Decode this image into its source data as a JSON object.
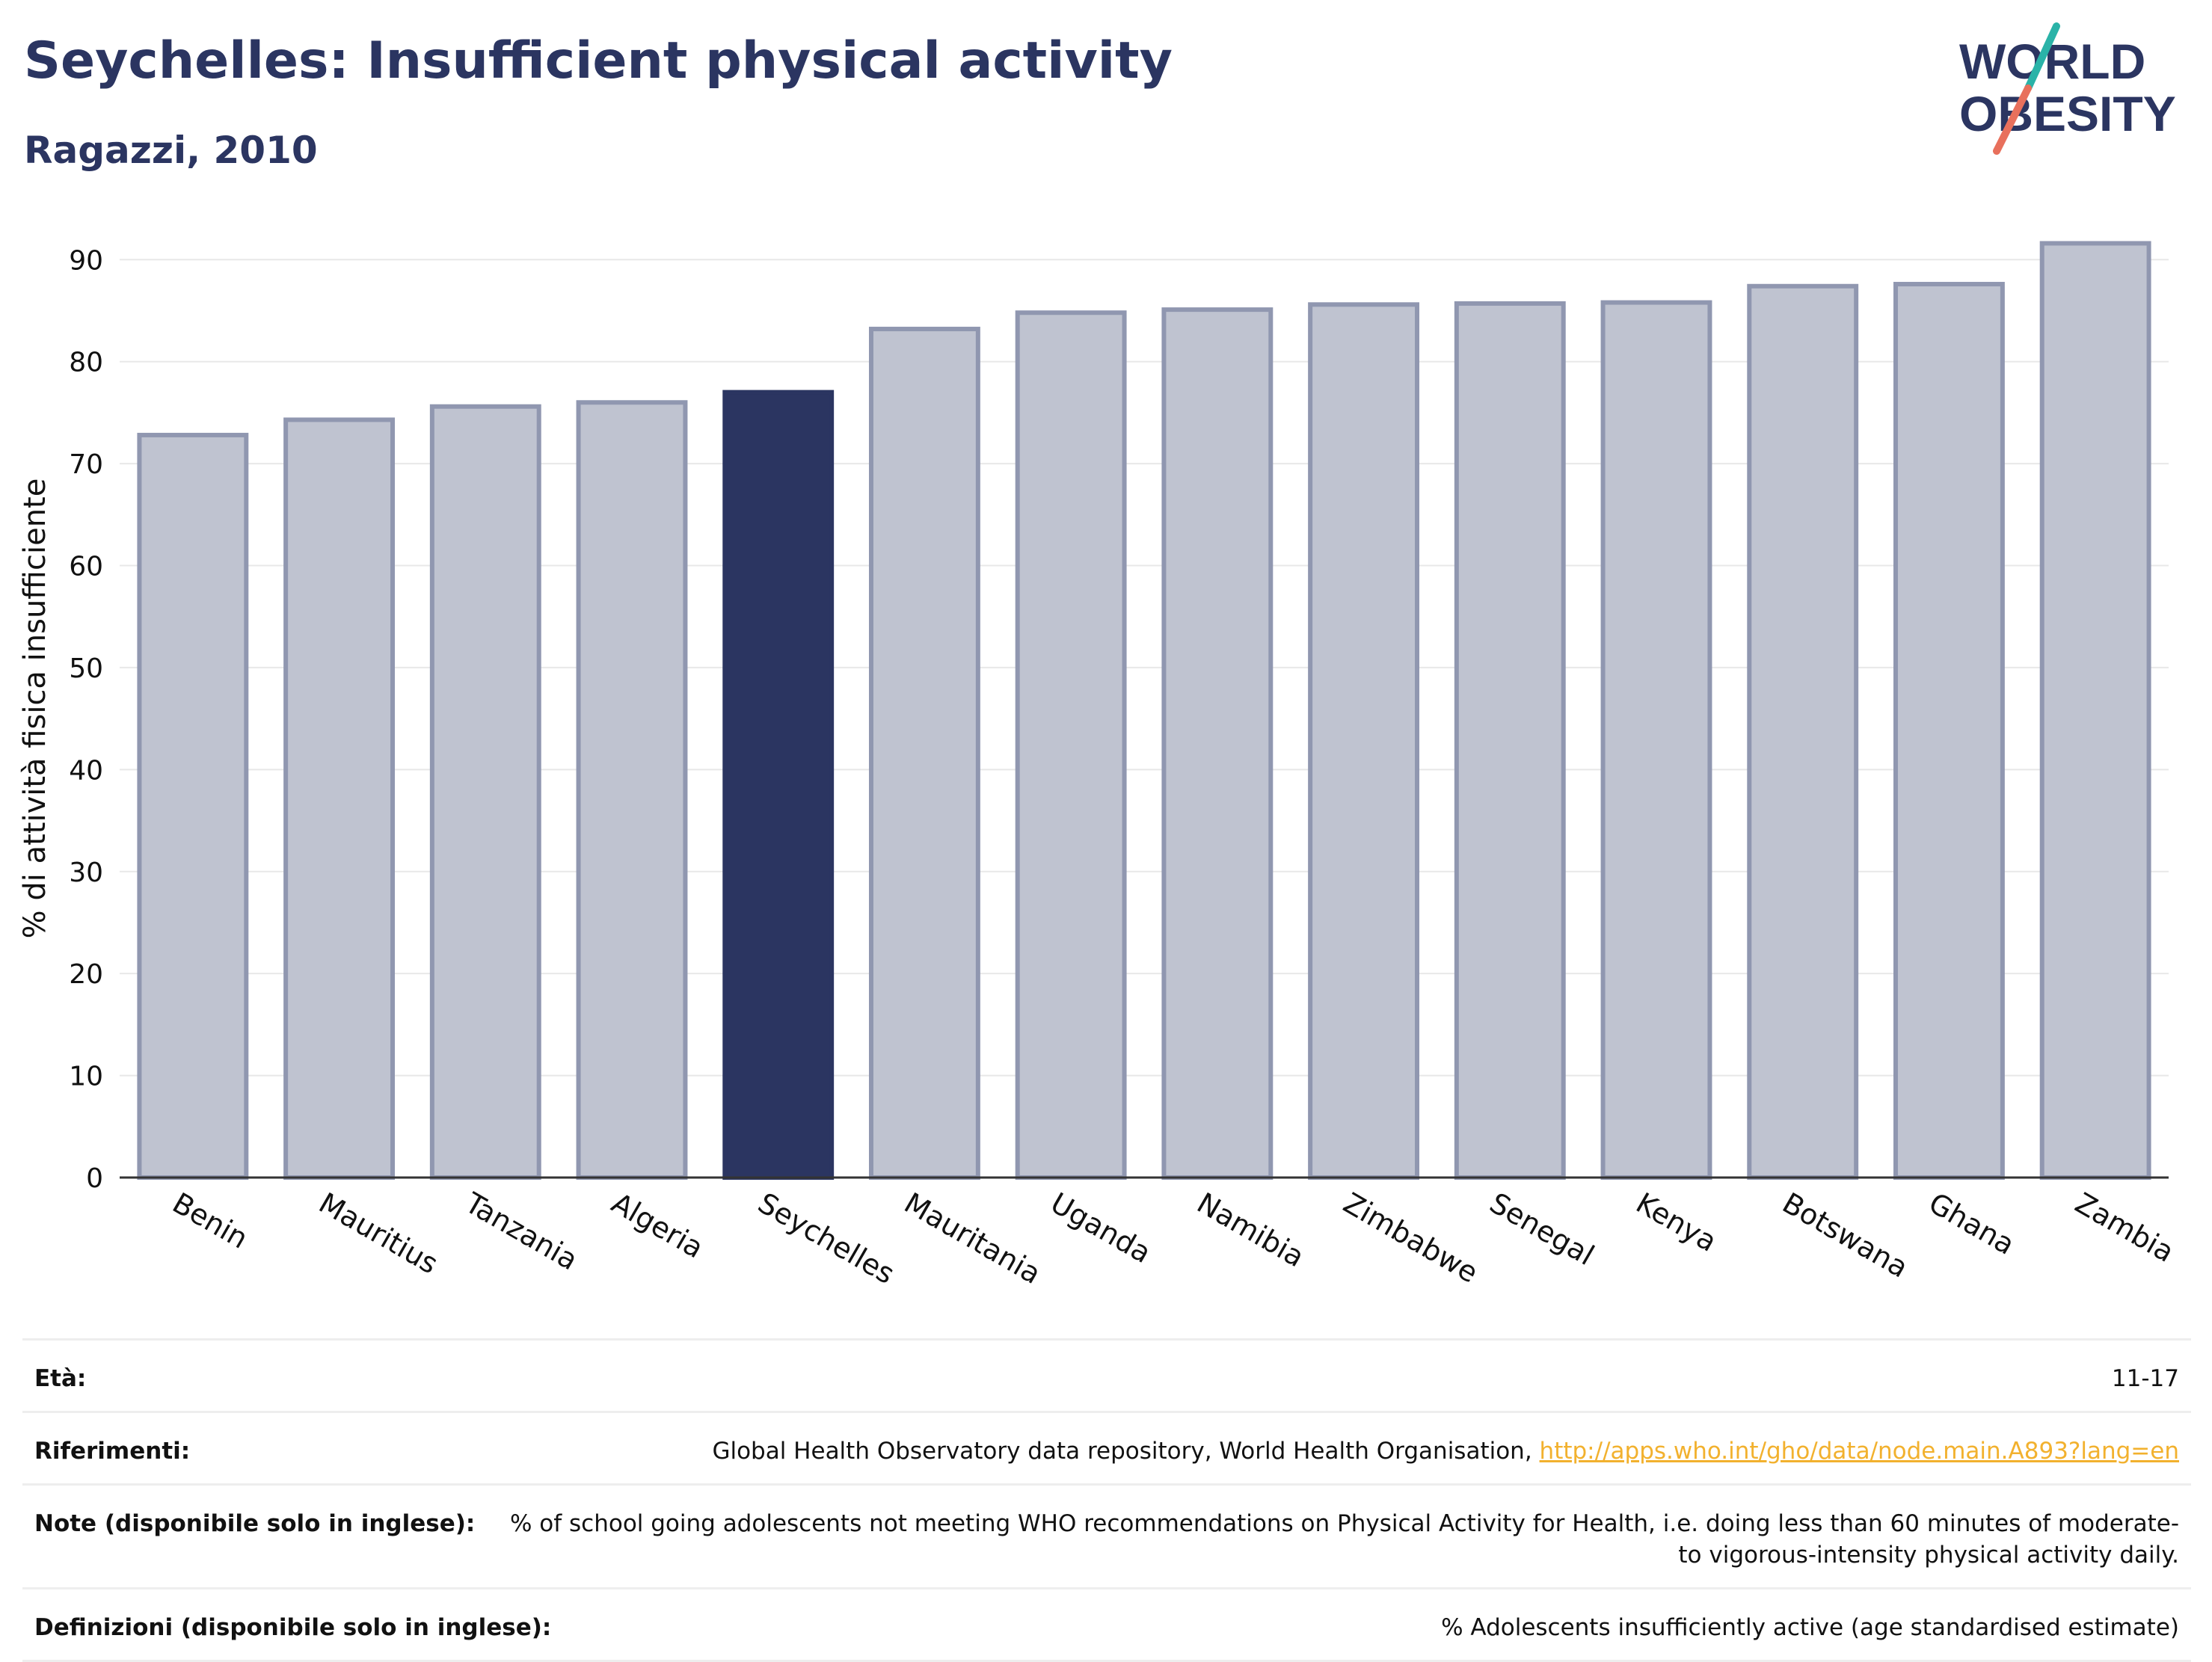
{
  "header": {
    "title": "Seychelles: Insufficient physical activity",
    "subtitle": "Ragazzi, 2010",
    "logo_line1": "WORLD",
    "logo_line2": "OBESITY"
  },
  "colors": {
    "highlight": "#2b3561",
    "bar_fill": "#bfc3d0",
    "bar_stroke": "#9097b0",
    "logo_slash_teal": "#2ab3a8",
    "logo_slash_red": "#e8705c",
    "link": "#f2b12e"
  },
  "chart_data": {
    "type": "bar",
    "title": "Seychelles: Insufficient physical activity",
    "subtitle": "Ragazzi, 2010",
    "xlabel": "",
    "ylabel": "% di attività fisica insufficiente",
    "ylim": [
      0,
      92
    ],
    "yticks": [
      0,
      10,
      20,
      30,
      40,
      50,
      60,
      70,
      80,
      90
    ],
    "grid": true,
    "categories": [
      "Benin",
      "Mauritius",
      "Tanzania",
      "Algeria",
      "Seychelles",
      "Mauritania",
      "Uganda",
      "Namibia",
      "Zimbabwe",
      "Senegal",
      "Kenya",
      "Botswana",
      "Ghana",
      "Zambia"
    ],
    "values": [
      72.8,
      74.3,
      75.6,
      76.0,
      77.0,
      83.2,
      84.8,
      85.1,
      85.6,
      85.7,
      85.8,
      87.4,
      87.6,
      91.6
    ],
    "highlight": "Seychelles"
  },
  "footer": {
    "rows": [
      {
        "label": "Età:",
        "value": "11-17"
      },
      {
        "label": "Riferimenti:",
        "value": "Global Health Observatory data repository, World Health Organisation, ",
        "link": "http://apps.who.int/gho/data/node.main.A893?lang=en"
      },
      {
        "label": "Note (disponibile solo in inglese):",
        "value": "% of school going adolescents not meeting WHO recommendations on Physical Activity for Health, i.e. doing less than 60 minutes of moderate- to vigorous-intensity physical activity daily."
      },
      {
        "label": "Definizioni (disponibile solo in inglese):",
        "value": "% Adolescents insufficiently active (age standardised estimate)"
      }
    ]
  }
}
